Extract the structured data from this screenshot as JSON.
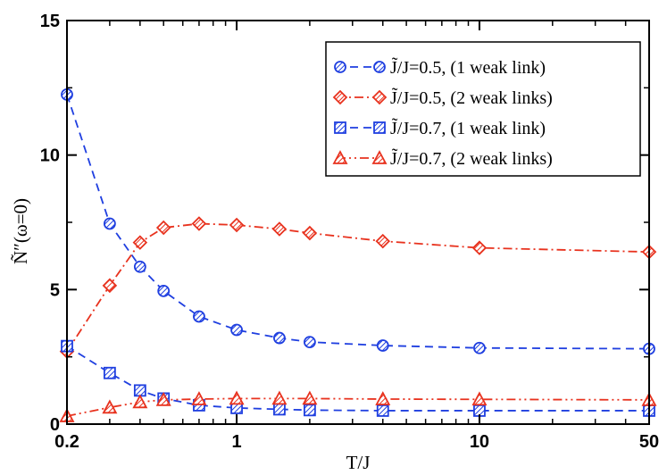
{
  "chart_data": {
    "type": "line",
    "xscale": "log",
    "xlabel": "T/J",
    "ylabel": "Ñ″(ω=0)",
    "xlim": [
      0.2,
      50
    ],
    "ylim": [
      0,
      15
    ],
    "x_ticks": [
      {
        "value": 0.2,
        "label": "0.2"
      },
      {
        "value": 1,
        "label": "1"
      },
      {
        "value": 10,
        "label": "10"
      },
      {
        "value": 50,
        "label": "50"
      }
    ],
    "y_ticks": [
      {
        "value": 0,
        "label": "0"
      },
      {
        "value": 5,
        "label": "5"
      },
      {
        "value": 10,
        "label": "10"
      },
      {
        "value": 15,
        "label": "15"
      }
    ],
    "legend_position": "top-right",
    "series": [
      {
        "name": "J̃/J=0.5, (1 weak link)",
        "color": "#1f3fe0",
        "marker": "circle",
        "dash": "dashed",
        "x": [
          0.2,
          0.3,
          0.4,
          0.5,
          0.7,
          1.0,
          1.5,
          2.0,
          4.0,
          10.0,
          50.0
        ],
        "y": [
          12.25,
          7.45,
          5.85,
          4.95,
          4.0,
          3.5,
          3.2,
          3.05,
          2.92,
          2.83,
          2.8
        ]
      },
      {
        "name": "J̃/J=0.5, (2 weak links)",
        "color": "#e8321e",
        "marker": "diamond",
        "dash": "dashdot",
        "x": [
          0.2,
          0.3,
          0.4,
          0.5,
          0.7,
          1.0,
          1.5,
          2.0,
          4.0,
          10.0,
          50.0
        ],
        "y": [
          2.7,
          5.15,
          6.75,
          7.3,
          7.45,
          7.4,
          7.25,
          7.1,
          6.8,
          6.55,
          6.4
        ]
      },
      {
        "name": "J̃/J=0.7, (1 weak link)",
        "color": "#1f3fe0",
        "marker": "square",
        "dash": "dashed",
        "x": [
          0.2,
          0.3,
          0.4,
          0.5,
          0.7,
          1.0,
          1.5,
          2.0,
          4.0,
          10.0,
          50.0
        ],
        "y": [
          2.9,
          1.9,
          1.25,
          0.95,
          0.7,
          0.6,
          0.55,
          0.52,
          0.5,
          0.5,
          0.5
        ]
      },
      {
        "name": "J̃/J=0.7, (2 weak links)",
        "color": "#e8321e",
        "marker": "triangle",
        "dash": "dashdotdot",
        "x": [
          0.2,
          0.3,
          0.4,
          0.5,
          0.7,
          1.0,
          1.5,
          2.0,
          4.0,
          10.0,
          50.0
        ],
        "y": [
          0.3,
          0.62,
          0.82,
          0.9,
          0.93,
          0.95,
          0.95,
          0.95,
          0.93,
          0.92,
          0.9
        ]
      }
    ]
  }
}
